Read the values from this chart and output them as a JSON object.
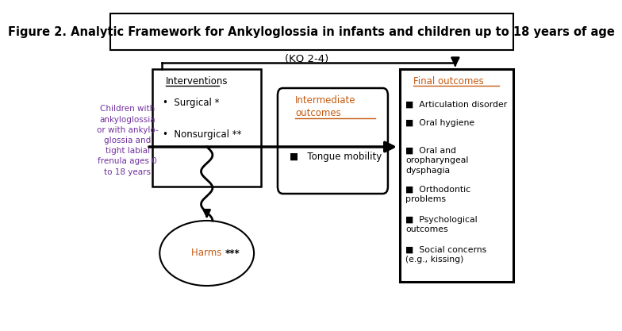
{
  "title": "Figure 2. Analytic Framework for Ankyloglossia in infants and children up to 18 years of age",
  "title_fontsize": 10.5,
  "title_color": "#000000",
  "population_text": "Children with\nankyloglossia\nor with ankylo-\nglossia and\ntight labial\nfrenula ages 0\nto 18 years",
  "population_color": "#7030A0",
  "interventions_title": "Interventions",
  "interventions_items": [
    "Surgical *",
    "Nonsurgical **"
  ],
  "intermediate_title": "Intermediate\noutcomes",
  "intermediate_items": [
    "Tongue mobility"
  ],
  "final_title": "Final outcomes",
  "final_items": [
    "Articulation disorder",
    "Oral hygiene",
    "Oral and\noropharyngeal\ndysphagia",
    "Orthodontic\nproblems",
    "Psychological\noutcomes",
    "Social concerns\n(e.g., kissing)"
  ],
  "harms_label": "Harms ",
  "harms_stars": "***",
  "harms_color": "#C55A11",
  "kq_label": "(KQ 2-4)",
  "background_color": "#ffffff",
  "box_edge_color": "#000000",
  "arrow_color": "#000000",
  "bullet": "■",
  "orange_color": "#C55A11",
  "purple_color": "#7030A0"
}
